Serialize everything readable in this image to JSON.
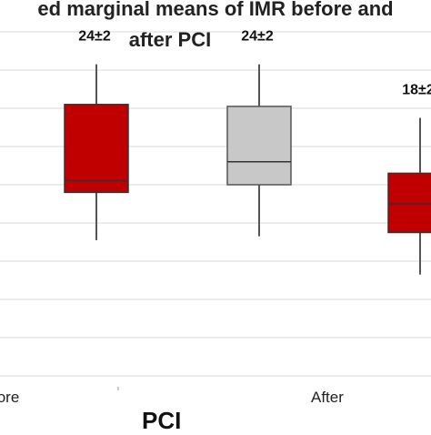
{
  "title_line1": "ed marginal means of IMR before and",
  "title_line2": "after PCI",
  "chart_data": {
    "type": "box",
    "xlabel": "PCI",
    "category_labels": [
      "fore",
      "After"
    ],
    "grid": true,
    "ylim": [
      0,
      9
    ],
    "boxes": [
      {
        "label": "24±2",
        "whisker_low": 3.55,
        "q1": 4.8,
        "median": 5.1,
        "q3": 7.1,
        "whisker_high": 8.15,
        "color": "#c00000"
      },
      {
        "label": "24±2",
        "whisker_low": 3.65,
        "q1": 5.0,
        "median": 5.6,
        "q3": 7.05,
        "whisker_high": 8.15,
        "color": "#c8c8c8"
      },
      {
        "label": "18±2",
        "whisker_low": 2.65,
        "q1": 3.75,
        "median": 4.5,
        "q3": 5.3,
        "whisker_high": 6.75,
        "color": "#c00000"
      }
    ]
  }
}
